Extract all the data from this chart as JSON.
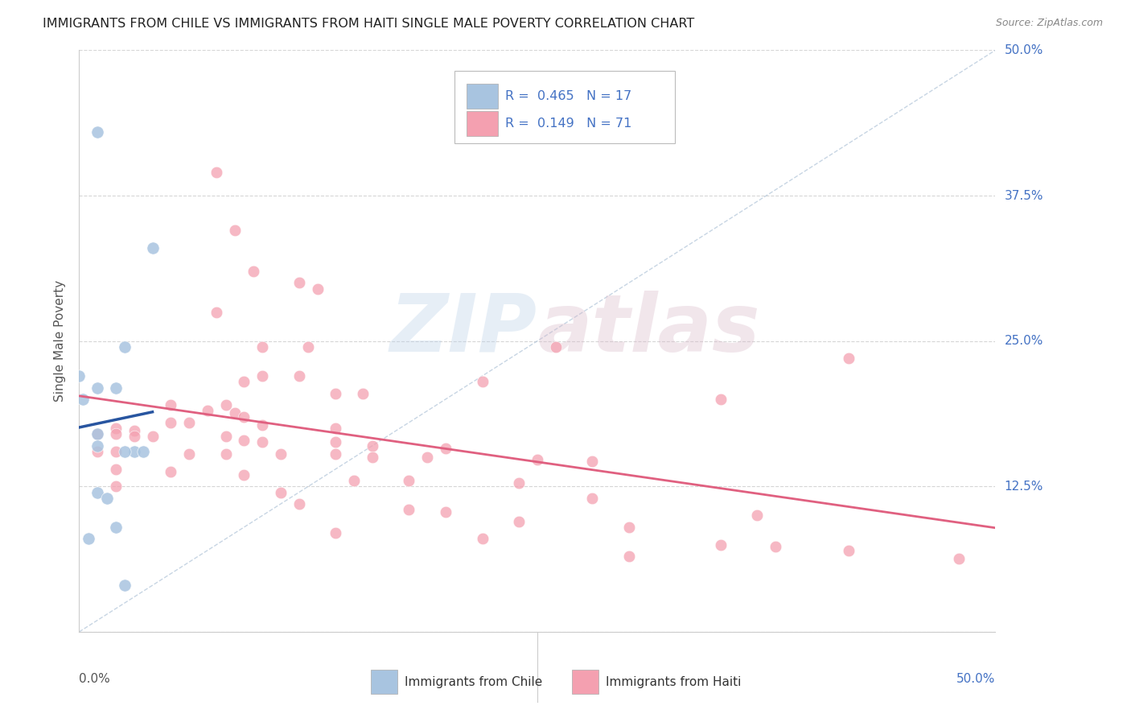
{
  "title": "IMMIGRANTS FROM CHILE VS IMMIGRANTS FROM HAITI SINGLE MALE POVERTY CORRELATION CHART",
  "source": "Source: ZipAtlas.com",
  "ylabel": "Single Male Poverty",
  "chile_color": "#a8c4e0",
  "haiti_color": "#f4a0b0",
  "trend_chile_color": "#2855a0",
  "trend_haiti_color": "#e06080",
  "diagonal_color": "#b0c4d8",
  "background_color": "#ffffff",
  "grid_color": "#cccccc",
  "right_label_color": "#4472c4",
  "chile_points": [
    [
      0.01,
      0.43
    ],
    [
      0.04,
      0.33
    ],
    [
      0.0,
      0.22
    ],
    [
      0.002,
      0.2
    ],
    [
      0.01,
      0.21
    ],
    [
      0.01,
      0.17
    ],
    [
      0.01,
      0.16
    ],
    [
      0.02,
      0.21
    ],
    [
      0.025,
      0.245
    ],
    [
      0.03,
      0.155
    ],
    [
      0.035,
      0.155
    ],
    [
      0.025,
      0.155
    ],
    [
      0.01,
      0.12
    ],
    [
      0.015,
      0.115
    ],
    [
      0.02,
      0.09
    ],
    [
      0.005,
      0.08
    ],
    [
      0.025,
      0.04
    ]
  ],
  "haiti_points": [
    [
      0.075,
      0.395
    ],
    [
      0.085,
      0.345
    ],
    [
      0.095,
      0.31
    ],
    [
      0.12,
      0.3
    ],
    [
      0.13,
      0.295
    ],
    [
      0.075,
      0.275
    ],
    [
      0.1,
      0.245
    ],
    [
      0.125,
      0.245
    ],
    [
      0.26,
      0.245
    ],
    [
      0.42,
      0.235
    ],
    [
      0.1,
      0.22
    ],
    [
      0.12,
      0.22
    ],
    [
      0.09,
      0.215
    ],
    [
      0.22,
      0.215
    ],
    [
      0.14,
      0.205
    ],
    [
      0.155,
      0.205
    ],
    [
      0.35,
      0.2
    ],
    [
      0.05,
      0.195
    ],
    [
      0.08,
      0.195
    ],
    [
      0.07,
      0.19
    ],
    [
      0.085,
      0.188
    ],
    [
      0.09,
      0.185
    ],
    [
      0.05,
      0.18
    ],
    [
      0.06,
      0.18
    ],
    [
      0.1,
      0.178
    ],
    [
      0.02,
      0.175
    ],
    [
      0.03,
      0.173
    ],
    [
      0.14,
      0.175
    ],
    [
      0.01,
      0.17
    ],
    [
      0.02,
      0.17
    ],
    [
      0.03,
      0.168
    ],
    [
      0.04,
      0.168
    ],
    [
      0.08,
      0.168
    ],
    [
      0.09,
      0.165
    ],
    [
      0.1,
      0.163
    ],
    [
      0.14,
      0.163
    ],
    [
      0.16,
      0.16
    ],
    [
      0.2,
      0.158
    ],
    [
      0.01,
      0.155
    ],
    [
      0.02,
      0.155
    ],
    [
      0.06,
      0.153
    ],
    [
      0.08,
      0.153
    ],
    [
      0.11,
      0.153
    ],
    [
      0.14,
      0.153
    ],
    [
      0.16,
      0.15
    ],
    [
      0.19,
      0.15
    ],
    [
      0.25,
      0.148
    ],
    [
      0.28,
      0.147
    ],
    [
      0.02,
      0.14
    ],
    [
      0.05,
      0.138
    ],
    [
      0.09,
      0.135
    ],
    [
      0.15,
      0.13
    ],
    [
      0.18,
      0.13
    ],
    [
      0.24,
      0.128
    ],
    [
      0.02,
      0.125
    ],
    [
      0.11,
      0.12
    ],
    [
      0.28,
      0.115
    ],
    [
      0.12,
      0.11
    ],
    [
      0.18,
      0.105
    ],
    [
      0.2,
      0.103
    ],
    [
      0.37,
      0.1
    ],
    [
      0.24,
      0.095
    ],
    [
      0.3,
      0.09
    ],
    [
      0.14,
      0.085
    ],
    [
      0.22,
      0.08
    ],
    [
      0.35,
      0.075
    ],
    [
      0.38,
      0.073
    ],
    [
      0.42,
      0.07
    ],
    [
      0.3,
      0.065
    ],
    [
      0.48,
      0.063
    ]
  ]
}
